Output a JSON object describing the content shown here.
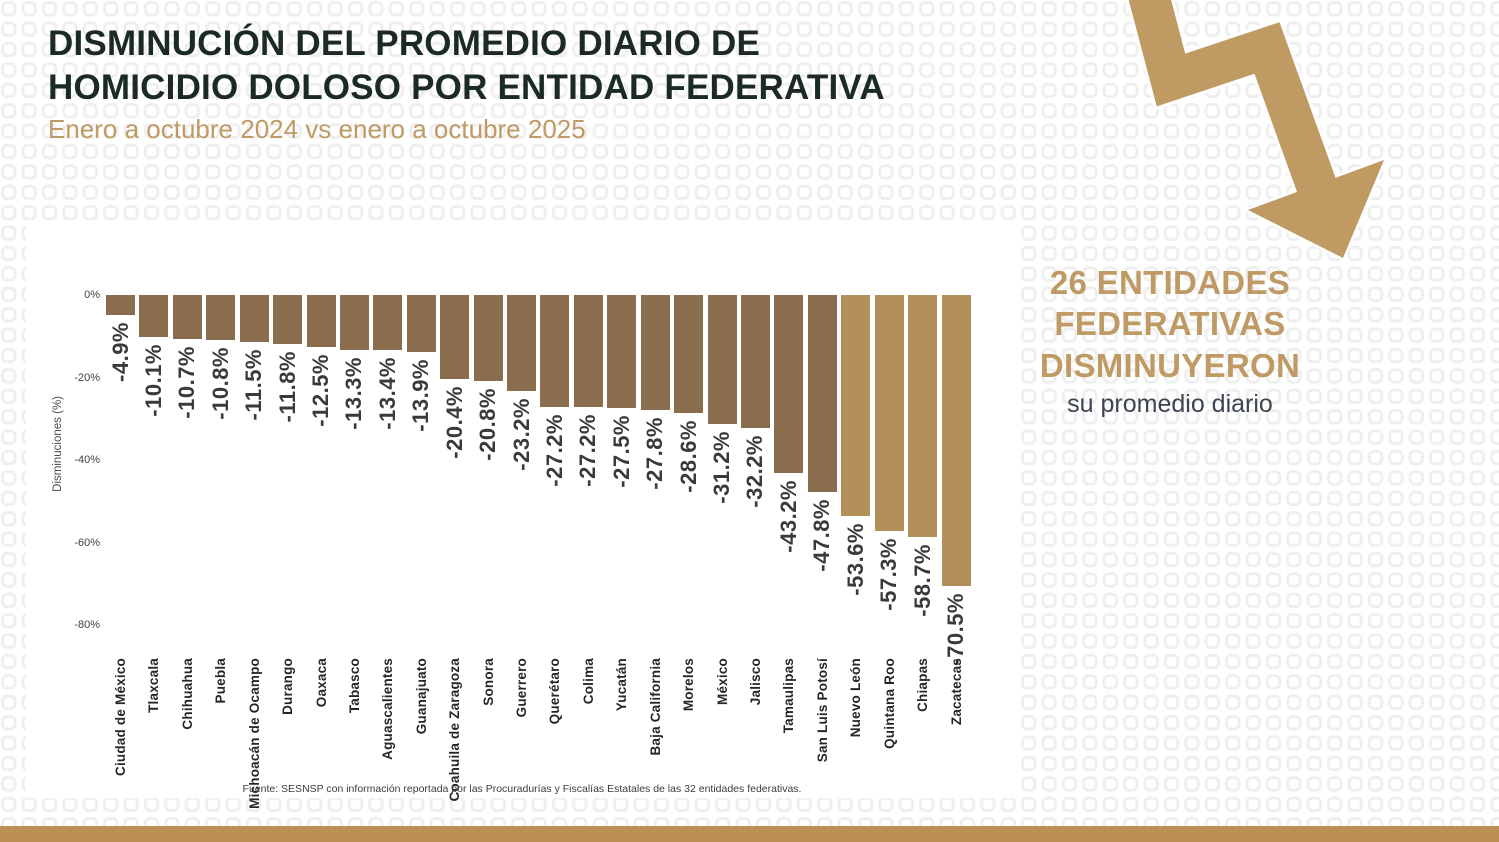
{
  "header": {
    "title_line1": "DISMINUCIÓN DEL PROMEDIO DIARIO DE",
    "title_line2": "HOMICIDIO DOLOSO POR ENTIDAD FEDERATIVA",
    "subtitle": "Enero a octubre 2024 vs enero a octubre 2025"
  },
  "highlight_panel": {
    "line1": "26 ENTIDADES",
    "line2": "FEDERATIVAS",
    "line3": "DISMINUYERON",
    "subline": "su promedio diario"
  },
  "decor": {
    "arrow_icon": "trend-down-zigzag-arrow",
    "arrow_color": "#bf9a63"
  },
  "chart_data": {
    "type": "bar",
    "title": "",
    "xlabel": "",
    "ylabel": "Disminuciones (%)",
    "ylim": [
      -85,
      0
    ],
    "grid": false,
    "legend": false,
    "yticks": [
      {
        "value": 0,
        "label": "0%"
      },
      {
        "value": -20,
        "label": "-20%"
      },
      {
        "value": -40,
        "label": "-40%"
      },
      {
        "value": -60,
        "label": "-60%"
      },
      {
        "value": -80,
        "label": "-80%"
      }
    ],
    "categories": [
      "Ciudad de México",
      "Tlaxcala",
      "Chihuahua",
      "Puebla",
      "Michoacán de Ocampo",
      "Durango",
      "Oaxaca",
      "Tabasco",
      "Aguascalientes",
      "Guanajuato",
      "Coahuila de Zaragoza",
      "Sonora",
      "Guerrero",
      "Querétaro",
      "Colima",
      "Yucatán",
      "Baja California",
      "Morelos",
      "México",
      "Jalisco",
      "Tamaulipas",
      "San Luis Potosí",
      "Nuevo León",
      "Quintana Roo",
      "Chiapas",
      "Zacatecas"
    ],
    "values": [
      -4.9,
      -10.1,
      -10.7,
      -10.8,
      -11.5,
      -11.8,
      -12.5,
      -13.3,
      -13.4,
      -13.9,
      -20.4,
      -20.8,
      -23.2,
      -27.2,
      -27.2,
      -27.5,
      -27.8,
      -28.6,
      -31.2,
      -32.2,
      -43.2,
      -47.8,
      -53.6,
      -57.3,
      -58.7,
      -70.5
    ],
    "value_labels": [
      "-4.9%",
      "-10.1%",
      "-10.7%",
      "-10.8%",
      "-11.5%",
      "-11.8%",
      "-12.5%",
      "-13.3%",
      "-13.4%",
      "-13.9%",
      "-20.4%",
      "-20.8%",
      "-23.2%",
      "-27.2%",
      "-27.2%",
      "-27.5%",
      "-27.8%",
      "-28.6%",
      "-31.2%",
      "-32.2%",
      "-43.2%",
      "-47.8%",
      "-53.6%",
      "-57.3%",
      "-58.7%",
      "-70.5%"
    ],
    "bar_color_dark": "#8a6d4c",
    "bar_color_light": "#b3905a",
    "light_bar_categories": [
      "Nuevo León",
      "Quintana Roo",
      "Chiapas",
      "Zacatecas"
    ]
  },
  "footer": {
    "source": "Fuente: SESNSP con información reportada por las Procuradurías y Fiscalías Estatales de las 32 entidades federativas."
  }
}
